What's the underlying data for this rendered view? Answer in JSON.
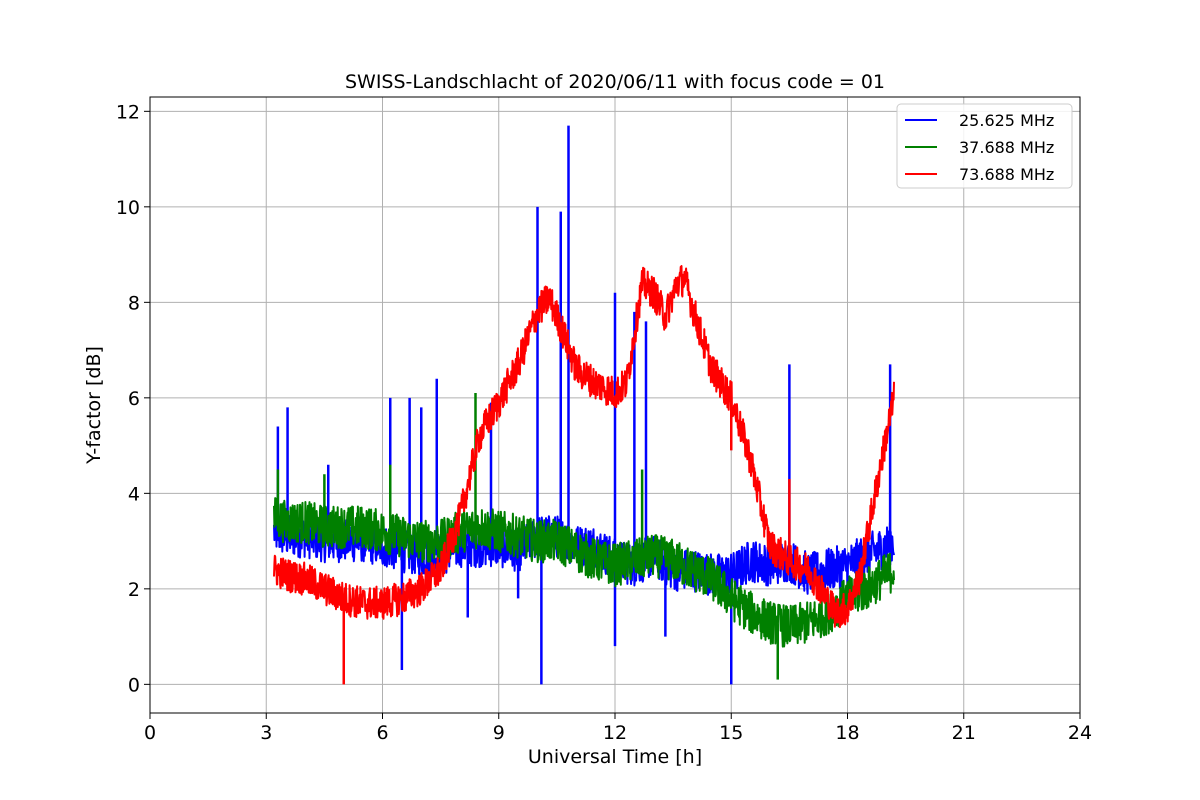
{
  "chart_data": {
    "type": "line",
    "title": "SWISS-Landschlacht of 2020/06/11 with focus code = 01",
    "xlabel": "Universal Time [h]",
    "ylabel": "Y-factor [dB]",
    "xlim": [
      0,
      24
    ],
    "ylim": [
      -0.6,
      12.3
    ],
    "xticks": [
      0,
      3,
      6,
      9,
      12,
      15,
      18,
      21,
      24
    ],
    "yticks": [
      0,
      2,
      4,
      6,
      8,
      10,
      12
    ],
    "grid": true,
    "legend_position": "top-right",
    "series": [
      {
        "name": "25.625 MHz",
        "color": "#0000ff",
        "x": [
          3.2,
          3.5,
          4.0,
          4.5,
          5.0,
          5.5,
          6.0,
          6.5,
          7.0,
          7.5,
          8.0,
          8.5,
          9.0,
          9.5,
          10.0,
          10.5,
          11.0,
          11.5,
          12.0,
          12.5,
          13.0,
          13.5,
          14.0,
          14.5,
          15.0,
          15.5,
          16.0,
          16.5,
          17.0,
          17.5,
          18.0,
          18.5,
          19.0,
          19.2
        ],
        "y": [
          3.2,
          3.1,
          3.1,
          3.0,
          3.0,
          3.0,
          2.9,
          2.8,
          2.7,
          2.7,
          2.9,
          2.9,
          2.9,
          2.8,
          3.1,
          3.1,
          2.9,
          2.9,
          2.6,
          2.5,
          2.7,
          2.4,
          2.4,
          2.3,
          2.3,
          2.6,
          2.5,
          2.6,
          2.3,
          2.4,
          2.5,
          2.7,
          2.9,
          3.0
        ],
        "spikes": [
          [
            3.3,
            5.4
          ],
          [
            3.55,
            5.8
          ],
          [
            4.6,
            4.6
          ],
          [
            6.2,
            6.0
          ],
          [
            6.5,
            0.3
          ],
          [
            6.7,
            6.0
          ],
          [
            7.0,
            5.8
          ],
          [
            7.4,
            6.4
          ],
          [
            8.2,
            1.4
          ],
          [
            8.8,
            5.9
          ],
          [
            9.5,
            1.8
          ],
          [
            10.0,
            10.0
          ],
          [
            10.1,
            0.0
          ],
          [
            10.6,
            9.9
          ],
          [
            10.8,
            11.7
          ],
          [
            12.0,
            0.8
          ],
          [
            12.0,
            8.2
          ],
          [
            12.5,
            7.8
          ],
          [
            12.8,
            7.6
          ],
          [
            13.3,
            1.0
          ],
          [
            15.0,
            0.0
          ],
          [
            16.5,
            6.7
          ],
          [
            19.1,
            6.7
          ]
        ]
      },
      {
        "name": "37.688 MHz",
        "color": "#008000",
        "x": [
          3.2,
          3.5,
          4.0,
          4.5,
          5.0,
          5.5,
          6.0,
          6.5,
          7.0,
          7.5,
          8.0,
          8.5,
          9.0,
          9.5,
          10.0,
          10.5,
          11.0,
          11.5,
          12.0,
          12.5,
          13.0,
          13.5,
          14.0,
          14.5,
          15.0,
          15.5,
          16.0,
          16.5,
          17.0,
          17.5,
          18.0,
          18.5,
          19.0,
          19.2
        ],
        "y": [
          3.5,
          3.4,
          3.4,
          3.3,
          3.3,
          3.3,
          3.2,
          3.1,
          3.0,
          3.0,
          3.2,
          3.3,
          3.2,
          3.1,
          3.0,
          3.0,
          2.8,
          2.6,
          2.5,
          2.6,
          2.7,
          2.6,
          2.4,
          2.2,
          1.8,
          1.5,
          1.3,
          1.2,
          1.3,
          1.5,
          1.8,
          2.0,
          2.3,
          2.4
        ],
        "spikes": [
          [
            3.3,
            4.5
          ],
          [
            4.5,
            4.4
          ],
          [
            6.2,
            4.6
          ],
          [
            8.4,
            6.1
          ],
          [
            12.7,
            4.5
          ],
          [
            16.2,
            0.1
          ]
        ]
      },
      {
        "name": "73.688 MHz",
        "color": "#ff0000",
        "x": [
          3.2,
          3.5,
          4.0,
          4.5,
          5.0,
          5.5,
          6.0,
          6.5,
          7.0,
          7.5,
          8.0,
          8.5,
          9.0,
          9.5,
          10.0,
          10.3,
          10.6,
          11.0,
          11.5,
          12.0,
          12.3,
          12.7,
          13.0,
          13.3,
          13.6,
          13.8,
          14.0,
          14.5,
          15.0,
          15.5,
          16.0,
          16.5,
          17.0,
          17.3,
          17.7,
          18.0,
          18.3,
          18.6,
          19.0,
          19.2
        ],
        "y": [
          2.4,
          2.3,
          2.2,
          2.0,
          1.8,
          1.7,
          1.7,
          1.8,
          2.0,
          2.4,
          3.5,
          5.2,
          5.9,
          6.7,
          7.8,
          8.1,
          7.5,
          6.6,
          6.3,
          6.1,
          6.3,
          8.4,
          8.2,
          7.7,
          8.4,
          8.5,
          7.9,
          6.6,
          6.0,
          4.7,
          2.9,
          2.6,
          2.4,
          2.0,
          1.5,
          1.6,
          2.2,
          3.5,
          5.2,
          6.0
        ],
        "spikes": [
          [
            5.0,
            0.0
          ],
          [
            15.0,
            4.9
          ],
          [
            16.5,
            4.3
          ]
        ]
      }
    ]
  }
}
